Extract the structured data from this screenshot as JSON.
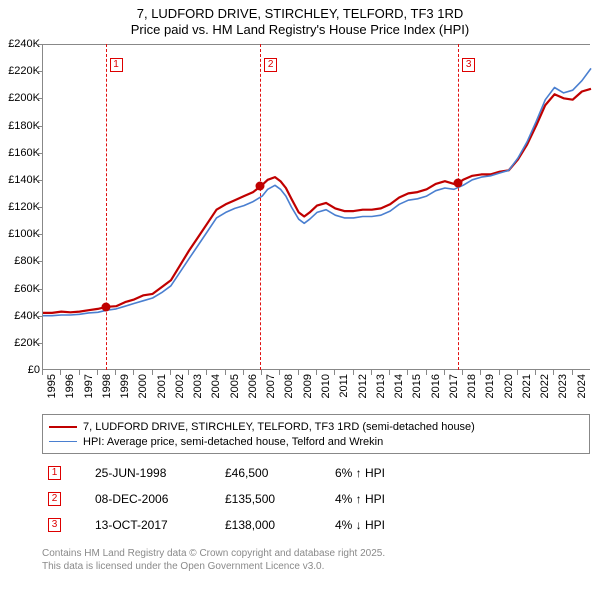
{
  "title": {
    "line1": "7, LUDFORD DRIVE, STIRCHLEY, TELFORD, TF3 1RD",
    "line2": "Price paid vs. HM Land Registry's House Price Index (HPI)"
  },
  "chart": {
    "type": "line",
    "background_color": "#ffffff",
    "grid_color": "#888888",
    "xlim": [
      1995,
      2025
    ],
    "ylim": [
      0,
      240000
    ],
    "ytick_step": 20000,
    "ytick_labels": [
      "£0",
      "£20K",
      "£40K",
      "£60K",
      "£80K",
      "£100K",
      "£120K",
      "£140K",
      "£160K",
      "£180K",
      "£200K",
      "£220K",
      "£240K"
    ],
    "xticks": [
      1995,
      1996,
      1997,
      1998,
      1999,
      2000,
      2001,
      2002,
      2003,
      2004,
      2005,
      2006,
      2007,
      2008,
      2009,
      2010,
      2011,
      2012,
      2013,
      2014,
      2015,
      2016,
      2017,
      2018,
      2019,
      2020,
      2021,
      2022,
      2023,
      2024
    ],
    "series": [
      {
        "name": "price_paid",
        "color": "#c00000",
        "line_width": 2.2,
        "points": [
          [
            1995.0,
            42000
          ],
          [
            1995.5,
            42000
          ],
          [
            1996.0,
            43000
          ],
          [
            1996.5,
            42500
          ],
          [
            1997.0,
            43000
          ],
          [
            1997.5,
            44000
          ],
          [
            1998.0,
            45000
          ],
          [
            1998.48,
            46500
          ],
          [
            1999.0,
            47000
          ],
          [
            1999.5,
            50000
          ],
          [
            2000.0,
            52000
          ],
          [
            2000.5,
            55000
          ],
          [
            2001.0,
            56000
          ],
          [
            2001.5,
            61000
          ],
          [
            2002.0,
            66000
          ],
          [
            2002.5,
            77000
          ],
          [
            2003.0,
            88000
          ],
          [
            2003.5,
            98000
          ],
          [
            2004.0,
            108000
          ],
          [
            2004.5,
            118000
          ],
          [
            2005.0,
            122000
          ],
          [
            2005.5,
            125000
          ],
          [
            2006.0,
            128000
          ],
          [
            2006.5,
            131000
          ],
          [
            2006.94,
            135500
          ],
          [
            2007.3,
            140000
          ],
          [
            2007.7,
            142000
          ],
          [
            2008.0,
            139000
          ],
          [
            2008.3,
            134000
          ],
          [
            2008.6,
            126000
          ],
          [
            2009.0,
            116000
          ],
          [
            2009.3,
            113000
          ],
          [
            2009.6,
            116000
          ],
          [
            2010.0,
            121000
          ],
          [
            2010.5,
            123000
          ],
          [
            2011.0,
            119000
          ],
          [
            2011.5,
            117000
          ],
          [
            2012.0,
            117000
          ],
          [
            2012.5,
            118000
          ],
          [
            2013.0,
            118000
          ],
          [
            2013.5,
            119000
          ],
          [
            2014.0,
            122000
          ],
          [
            2014.5,
            127000
          ],
          [
            2015.0,
            130000
          ],
          [
            2015.5,
            131000
          ],
          [
            2016.0,
            133000
          ],
          [
            2016.5,
            137000
          ],
          [
            2017.0,
            139000
          ],
          [
            2017.5,
            137000
          ],
          [
            2017.78,
            138000
          ],
          [
            2018.0,
            140000
          ],
          [
            2018.5,
            143000
          ],
          [
            2019.0,
            144000
          ],
          [
            2019.5,
            144000
          ],
          [
            2020.0,
            146000
          ],
          [
            2020.5,
            147000
          ],
          [
            2021.0,
            155000
          ],
          [
            2021.5,
            166000
          ],
          [
            2022.0,
            180000
          ],
          [
            2022.5,
            195000
          ],
          [
            2023.0,
            203000
          ],
          [
            2023.5,
            200000
          ],
          [
            2024.0,
            199000
          ],
          [
            2024.5,
            205000
          ],
          [
            2025.0,
            207000
          ]
        ]
      },
      {
        "name": "hpi",
        "color": "#4a7fd0",
        "line_width": 1.6,
        "points": [
          [
            1995.0,
            40000
          ],
          [
            1995.5,
            40000
          ],
          [
            1996.0,
            40500
          ],
          [
            1996.5,
            40500
          ],
          [
            1997.0,
            41000
          ],
          [
            1997.5,
            42000
          ],
          [
            1998.0,
            42500
          ],
          [
            1998.5,
            44000
          ],
          [
            1999.0,
            45000
          ],
          [
            1999.5,
            47000
          ],
          [
            2000.0,
            49000
          ],
          [
            2000.5,
            51000
          ],
          [
            2001.0,
            53000
          ],
          [
            2001.5,
            57000
          ],
          [
            2002.0,
            62000
          ],
          [
            2002.5,
            72000
          ],
          [
            2003.0,
            82000
          ],
          [
            2003.5,
            92000
          ],
          [
            2004.0,
            102000
          ],
          [
            2004.5,
            112000
          ],
          [
            2005.0,
            116000
          ],
          [
            2005.5,
            119000
          ],
          [
            2006.0,
            121000
          ],
          [
            2006.5,
            124000
          ],
          [
            2007.0,
            128000
          ],
          [
            2007.3,
            133000
          ],
          [
            2007.7,
            136000
          ],
          [
            2008.0,
            133000
          ],
          [
            2008.3,
            128000
          ],
          [
            2008.6,
            120000
          ],
          [
            2009.0,
            111000
          ],
          [
            2009.3,
            108000
          ],
          [
            2009.6,
            111000
          ],
          [
            2010.0,
            116000
          ],
          [
            2010.5,
            118000
          ],
          [
            2011.0,
            114000
          ],
          [
            2011.5,
            112000
          ],
          [
            2012.0,
            112000
          ],
          [
            2012.5,
            113000
          ],
          [
            2013.0,
            113000
          ],
          [
            2013.5,
            114000
          ],
          [
            2014.0,
            117000
          ],
          [
            2014.5,
            122000
          ],
          [
            2015.0,
            125000
          ],
          [
            2015.5,
            126000
          ],
          [
            2016.0,
            128000
          ],
          [
            2016.5,
            132000
          ],
          [
            2017.0,
            134000
          ],
          [
            2017.5,
            133000
          ],
          [
            2018.0,
            136000
          ],
          [
            2018.5,
            140000
          ],
          [
            2019.0,
            142000
          ],
          [
            2019.5,
            143000
          ],
          [
            2020.0,
            145000
          ],
          [
            2020.5,
            147000
          ],
          [
            2021.0,
            156000
          ],
          [
            2021.5,
            168000
          ],
          [
            2022.0,
            183000
          ],
          [
            2022.5,
            199000
          ],
          [
            2023.0,
            208000
          ],
          [
            2023.5,
            204000
          ],
          [
            2024.0,
            206000
          ],
          [
            2024.5,
            213000
          ],
          [
            2025.0,
            222000
          ]
        ]
      }
    ],
    "sale_markers": [
      {
        "n": "1",
        "x": 1998.48,
        "y": 46500
      },
      {
        "n": "2",
        "x": 2006.94,
        "y": 135500
      },
      {
        "n": "3",
        "x": 2017.78,
        "y": 138000
      }
    ],
    "marker_box_top_offset": 14,
    "marker_border_color": "#d00000"
  },
  "legend": {
    "items": [
      {
        "color": "#c00000",
        "width": 2.2,
        "label": "7, LUDFORD DRIVE, STIRCHLEY, TELFORD, TF3 1RD (semi-detached house)"
      },
      {
        "color": "#4a7fd0",
        "width": 1.6,
        "label": "HPI: Average price, semi-detached house, Telford and Wrekin"
      }
    ]
  },
  "events": [
    {
      "n": "1",
      "date": "25-JUN-1998",
      "price": "£46,500",
      "pct": "6% ↑ HPI"
    },
    {
      "n": "2",
      "date": "08-DEC-2006",
      "price": "£135,500",
      "pct": "4% ↑ HPI"
    },
    {
      "n": "3",
      "date": "13-OCT-2017",
      "price": "£138,000",
      "pct": "4% ↓ HPI"
    }
  ],
  "footer": {
    "line1": "Contains HM Land Registry data © Crown copyright and database right 2025.",
    "line2": "This data is licensed under the Open Government Licence v3.0."
  }
}
